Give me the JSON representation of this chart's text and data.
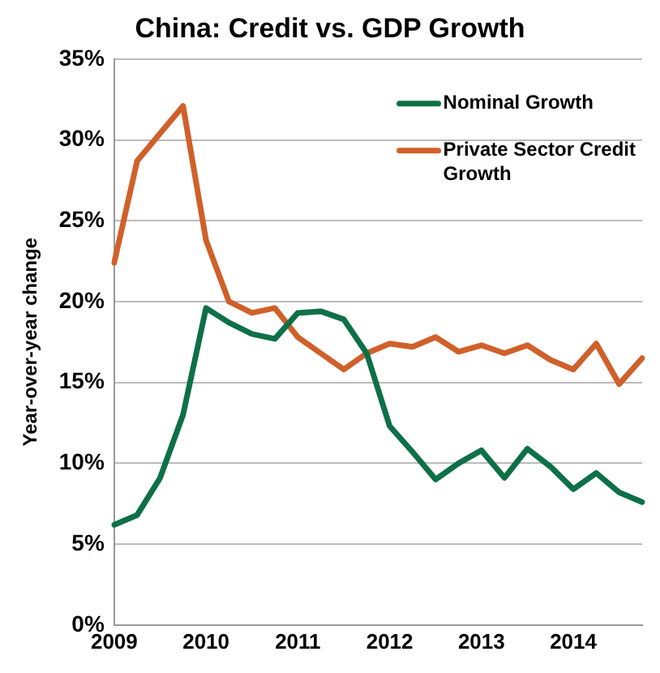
{
  "chart_data": {
    "type": "line",
    "title": "China: Credit vs. GDP Growth",
    "ylabel": "Year-over-year change",
    "categories": [
      "2009",
      null,
      null,
      null,
      "2010",
      null,
      null,
      null,
      "2011",
      null,
      null,
      null,
      "2012",
      null,
      null,
      null,
      "2013",
      null,
      null,
      null,
      "2014",
      null,
      null,
      null
    ],
    "series": [
      {
        "name": "Nominal Growth",
        "color": "#0e7048",
        "values": [
          6.2,
          6.8,
          9.1,
          13.0,
          19.6,
          18.7,
          18.0,
          17.7,
          19.3,
          19.4,
          18.9,
          16.8,
          12.3,
          10.7,
          9.0,
          10.0,
          10.8,
          9.1,
          10.9,
          9.8,
          8.4,
          9.4,
          8.2,
          7.6
        ]
      },
      {
        "name": "Private Sector Credit Growth",
        "color": "#d0602a",
        "values": [
          22.4,
          28.7,
          30.4,
          32.1,
          23.8,
          20.0,
          19.3,
          19.6,
          17.8,
          16.8,
          15.8,
          16.8,
          17.4,
          17.2,
          17.8,
          16.9,
          17.3,
          16.8,
          17.3,
          16.4,
          15.8,
          17.4,
          14.9,
          16.5
        ]
      }
    ],
    "ylim": [
      0,
      35
    ],
    "yticks": [
      {
        "value": 0,
        "label": "0%"
      },
      {
        "value": 5,
        "label": "5%"
      },
      {
        "value": 10,
        "label": "10%"
      },
      {
        "value": 15,
        "label": "15%"
      },
      {
        "value": 20,
        "label": "20%"
      },
      {
        "value": 25,
        "label": "25%"
      },
      {
        "value": 30,
        "label": "30%"
      },
      {
        "value": 35,
        "label": "35%"
      }
    ],
    "grid": "y",
    "legend": "top right",
    "marker": "none",
    "line_style": "solid"
  }
}
